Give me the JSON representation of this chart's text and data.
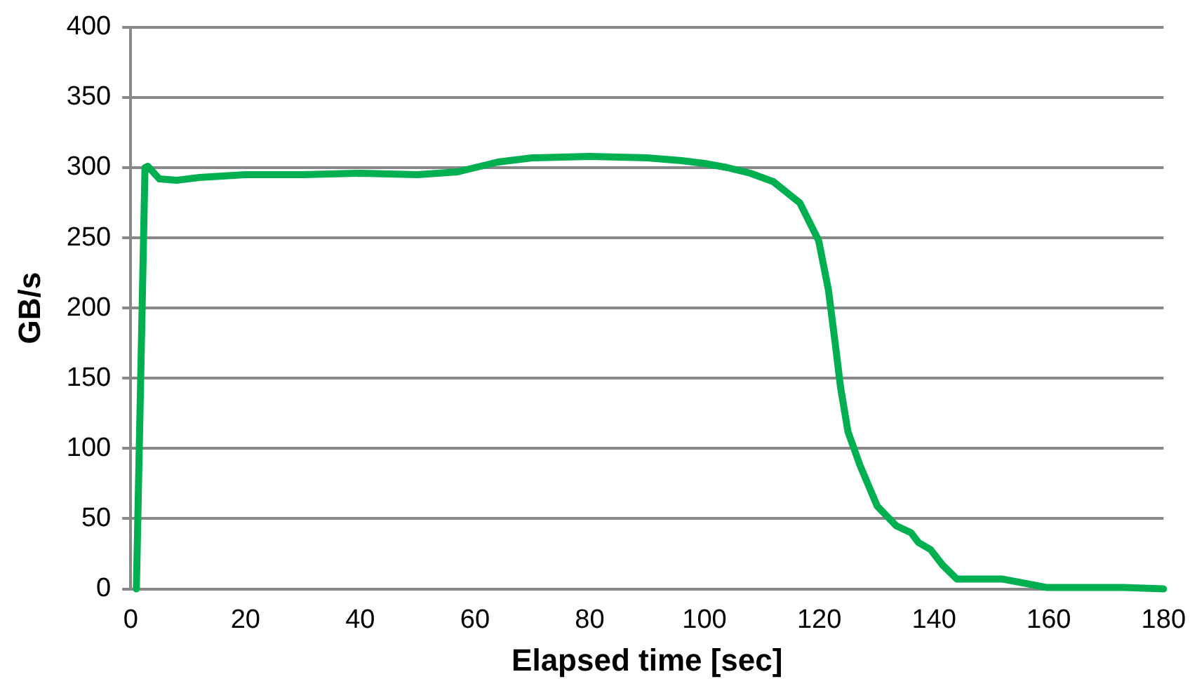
{
  "chart_data": {
    "type": "line",
    "xlabel": "Elapsed time [sec]",
    "ylabel": "GB/s",
    "series": [
      {
        "color": "#00b050",
        "x": [
          1,
          2.5,
          3,
          5,
          8,
          12,
          20,
          30,
          40,
          50,
          57,
          60,
          64,
          70,
          80,
          90,
          96,
          100,
          104,
          108,
          112,
          116.6,
          119.9,
          121.6,
          122.9,
          123.7,
          125,
          127.1,
          130.1,
          133.4,
          136,
          137.3,
          139.4,
          141.5,
          144,
          152,
          159.7,
          173,
          180
        ],
        "values": [
          0,
          300,
          301,
          292,
          291,
          293,
          295,
          295,
          296,
          295,
          297,
          300,
          304,
          307,
          308,
          307,
          305,
          303,
          300,
          296,
          290,
          275,
          248,
          213,
          171,
          144,
          112,
          88,
          59,
          45,
          40,
          33,
          28,
          17,
          7,
          7,
          1,
          1,
          0
        ]
      }
    ],
    "xlim": [
      0,
      180
    ],
    "xticks": [
      0,
      20,
      40,
      60,
      80,
      100,
      120,
      140,
      160,
      180
    ],
    "ylim": [
      0,
      400
    ],
    "yticks": [
      0,
      50,
      100,
      150,
      200,
      250,
      300,
      350,
      400
    ],
    "grid": "y",
    "legend": false,
    "marker": "none",
    "line_style": "solid"
  }
}
